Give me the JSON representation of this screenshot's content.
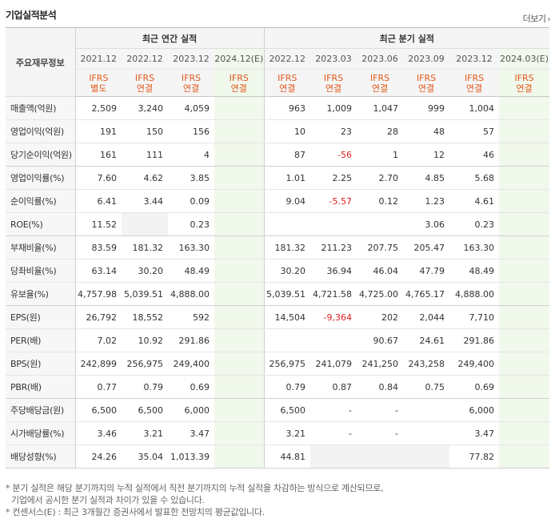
{
  "title": "기업실적분석",
  "more_label": "더보기",
  "header": {
    "corner_label": "주요재무정보",
    "annual_label": "최근 연간 실적",
    "quarter_label": "최근 분기 실적",
    "annual_periods": [
      "2021.12",
      "2022.12",
      "2023.12",
      "2024.12(E)"
    ],
    "quarter_periods": [
      "2022.12",
      "2023.03",
      "2023.06",
      "2023.09",
      "2023.12",
      "2024.03(E)"
    ],
    "annual_basis": [
      [
        "IFRS",
        "별도"
      ],
      [
        "IFRS",
        "연결"
      ],
      [
        "IFRS",
        "연결"
      ],
      [
        "IFRS",
        "연결"
      ]
    ],
    "quarter_basis": [
      [
        "IFRS",
        "연결"
      ],
      [
        "IFRS",
        "연결"
      ],
      [
        "IFRS",
        "연결"
      ],
      [
        "IFRS",
        "연결"
      ],
      [
        "IFRS",
        "연결"
      ],
      [
        "IFRS",
        "연결"
      ]
    ]
  },
  "rows": [
    {
      "label": "매출액(억원)",
      "annual": [
        "2,509",
        "3,240",
        "4,059",
        ""
      ],
      "quarter": [
        "963",
        "1,009",
        "1,047",
        "999",
        "1,004",
        ""
      ]
    },
    {
      "label": "영업이익(억원)",
      "annual": [
        "191",
        "150",
        "156",
        ""
      ],
      "quarter": [
        "10",
        "23",
        "28",
        "48",
        "57",
        ""
      ]
    },
    {
      "label": "당기순이익(억원)",
      "annual": [
        "161",
        "111",
        "4",
        ""
      ],
      "quarter": [
        "87",
        "-56",
        "1",
        "12",
        "46",
        ""
      ]
    },
    {
      "label": "영업이익률(%)",
      "annual": [
        "7.60",
        "4.62",
        "3.85",
        ""
      ],
      "quarter": [
        "1.01",
        "2.25",
        "2.70",
        "4.85",
        "5.68",
        ""
      ]
    },
    {
      "label": "순이익률(%)",
      "annual": [
        "6.41",
        "3.44",
        "0.09",
        ""
      ],
      "quarter": [
        "9.04",
        "-5.57",
        "0.12",
        "1.23",
        "4.61",
        ""
      ]
    },
    {
      "label": "ROE(%)",
      "annual": [
        "11.52",
        "",
        "0.23",
        ""
      ],
      "quarter": [
        "",
        "",
        "",
        "3.06",
        "0.23",
        ""
      ]
    },
    {
      "label": "부채비율(%)",
      "annual": [
        "83.59",
        "181.32",
        "163.30",
        ""
      ],
      "quarter": [
        "181.32",
        "211.23",
        "207.75",
        "205.47",
        "163.30",
        ""
      ]
    },
    {
      "label": "당좌비율(%)",
      "annual": [
        "63.14",
        "30.20",
        "48.49",
        ""
      ],
      "quarter": [
        "30.20",
        "36.94",
        "46.04",
        "47.79",
        "48.49",
        ""
      ]
    },
    {
      "label": "유보율(%)",
      "annual": [
        "4,757.98",
        "5,039.51",
        "4,888.00",
        ""
      ],
      "quarter": [
        "5,039.51",
        "4,721.58",
        "4,725.00",
        "4,765.17",
        "4,888.00",
        ""
      ]
    },
    {
      "label": "EPS(원)",
      "annual": [
        "26,792",
        "18,552",
        "592",
        ""
      ],
      "quarter": [
        "14,504",
        "-9,364",
        "202",
        "2,044",
        "7,710",
        ""
      ]
    },
    {
      "label": "PER(배)",
      "annual": [
        "7.02",
        "10.92",
        "291.86",
        ""
      ],
      "quarter": [
        "",
        "",
        "90.67",
        "24.61",
        "291.86",
        ""
      ]
    },
    {
      "label": "BPS(원)",
      "annual": [
        "242,899",
        "256,975",
        "249,400",
        ""
      ],
      "quarter": [
        "256,975",
        "241,079",
        "241,250",
        "243,258",
        "249,400",
        ""
      ]
    },
    {
      "label": "PBR(배)",
      "annual": [
        "0.77",
        "0.79",
        "0.69",
        ""
      ],
      "quarter": [
        "0.79",
        "0.87",
        "0.84",
        "0.75",
        "0.69",
        ""
      ]
    },
    {
      "label": "주당배당금(원)",
      "annual": [
        "6,500",
        "6,500",
        "6,000",
        ""
      ],
      "quarter": [
        "6,500",
        "-",
        "-",
        "",
        "6,000",
        ""
      ]
    },
    {
      "label": "시가배당률(%)",
      "annual": [
        "3.46",
        "3.21",
        "3.47",
        ""
      ],
      "quarter": [
        "3.21",
        "-",
        "-",
        "",
        "3.47",
        ""
      ]
    },
    {
      "label": "배당성향(%)",
      "annual": [
        "24.26",
        "35.04",
        "1,013.39",
        ""
      ],
      "quarter": [
        "44.81",
        "",
        "",
        "",
        "77.82",
        ""
      ]
    }
  ],
  "notes": [
    "* 분기 실적은 해당 분기까지의 누적 실적에서 직전 분기까지의 누적 실적을 차감하는 방식으로 계산되므로,",
    "  기업에서 공시한 분기 실적과 차이가 있을 수 있습니다.",
    "* 컨센서스(E) : 최근 3개월간 증권사에서 발표한 전망치의 평균값입니다."
  ],
  "colors": {
    "ifrs": "#e0581a",
    "negative": "#e02020",
    "estimate_bg": "#f1f8ec"
  }
}
